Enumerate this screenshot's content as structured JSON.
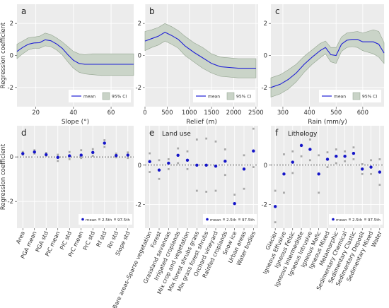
{
  "colors": {
    "line": "#1f1fd6",
    "band": "#c9d3c7",
    "band_stroke": "#8ea08a",
    "point_mean": "#1414c8",
    "point_ci": "#a8a8a8",
    "panel_bg": "#ececec",
    "zero_line": "#222222"
  },
  "chart_data": [
    {
      "type": "line",
      "panel_label": "a",
      "xlabel": "Slope (°)",
      "ylabel": "Regression coefficient",
      "xlim": [
        10,
        72
      ],
      "ylim": [
        -3.2,
        3.2
      ],
      "x_ticks": [
        20,
        40,
        60
      ],
      "y_ticks": [
        -2,
        0,
        2
      ],
      "legend_placement": "bottom-right",
      "legend": {
        "mean": "mean",
        "ci": "95% CI"
      },
      "x": [
        10,
        13,
        16,
        19,
        22,
        25,
        28,
        31,
        34,
        37,
        40,
        43,
        46,
        50,
        55,
        60,
        65,
        70,
        72
      ],
      "mean": [
        0.25,
        0.5,
        0.7,
        0.78,
        0.8,
        0.98,
        0.92,
        0.72,
        0.45,
        0.05,
        -0.3,
        -0.5,
        -0.55,
        -0.55,
        -0.55,
        -0.55,
        -0.55,
        -0.55,
        -0.55
      ],
      "lower": [
        -0.2,
        0.1,
        0.35,
        0.45,
        0.45,
        0.6,
        0.55,
        0.35,
        0.05,
        -0.4,
        -0.8,
        -1.05,
        -1.15,
        -1.2,
        -1.25,
        -1.25,
        -1.25,
        -1.25,
        -1.25
      ],
      "upper": [
        0.7,
        0.9,
        1.1,
        1.15,
        1.2,
        1.4,
        1.3,
        1.1,
        0.85,
        0.55,
        0.25,
        0.1,
        0.05,
        0.1,
        0.1,
        0.1,
        0.1,
        0.1,
        0.1
      ]
    },
    {
      "type": "line",
      "panel_label": "b",
      "xlabel": "Relief (m)",
      "ylabel": "",
      "xlim": [
        0,
        2550
      ],
      "ylim": [
        -3.2,
        3.2
      ],
      "x_ticks": [
        0,
        500,
        1000,
        1500,
        2000,
        2500
      ],
      "y_ticks": [
        -2,
        0,
        2
      ],
      "legend_placement": "bottom-right",
      "legend": {
        "mean": "mean",
        "ci": "95% CI"
      },
      "x": [
        0,
        150,
        300,
        450,
        600,
        750,
        900,
        1100,
        1300,
        1500,
        1700,
        1900,
        2100,
        2300,
        2500
      ],
      "mean": [
        0.9,
        1.05,
        1.2,
        1.45,
        1.25,
        1.0,
        0.6,
        0.2,
        -0.15,
        -0.5,
        -0.7,
        -0.75,
        -0.8,
        -0.8,
        -0.8
      ],
      "lower": [
        0.3,
        0.5,
        0.65,
        0.9,
        0.7,
        0.45,
        0.0,
        -0.4,
        -0.8,
        -1.1,
        -1.3,
        -1.35,
        -1.4,
        -1.4,
        -1.4
      ],
      "upper": [
        1.5,
        1.6,
        1.75,
        2.0,
        1.8,
        1.55,
        1.2,
        0.8,
        0.5,
        0.1,
        -0.1,
        -0.15,
        -0.2,
        -0.2,
        -0.2
      ]
    },
    {
      "type": "line",
      "panel_label": "c",
      "xlabel": "Rain (mm/y)",
      "ylabel": "",
      "xlim": [
        255,
        680
      ],
      "ylim": [
        -3.2,
        3.2
      ],
      "x_ticks": [
        300,
        400,
        500,
        600
      ],
      "y_ticks": [
        -2,
        0,
        2
      ],
      "legend_placement": "bottom-right",
      "legend": {
        "mean": "mean",
        "ci": "95% CI"
      },
      "x": [
        255,
        290,
        320,
        350,
        380,
        410,
        440,
        460,
        480,
        500,
        520,
        540,
        560,
        580,
        600,
        620,
        640,
        660,
        680
      ],
      "mean": [
        -2.0,
        -1.8,
        -1.5,
        -1.1,
        -0.55,
        -0.1,
        0.3,
        0.5,
        0.05,
        0.0,
        0.7,
        0.95,
        1.0,
        1.0,
        0.85,
        0.85,
        0.85,
        0.7,
        0.15
      ],
      "lower": [
        -2.6,
        -2.4,
        -2.1,
        -1.65,
        -1.05,
        -0.55,
        -0.15,
        0.1,
        -0.4,
        -0.5,
        0.25,
        0.5,
        0.55,
        0.5,
        0.3,
        0.2,
        0.1,
        -0.1,
        -0.5
      ],
      "upper": [
        -1.4,
        -1.2,
        -0.9,
        -0.55,
        -0.05,
        0.35,
        0.75,
        0.9,
        0.5,
        0.5,
        1.15,
        1.4,
        1.45,
        1.5,
        1.4,
        1.5,
        1.6,
        1.5,
        0.8
      ]
    },
    {
      "type": "scatter",
      "panel_label": "d",
      "title": "",
      "ylabel": "Regression coefficient",
      "ylim": [
        -3.2,
        1.4
      ],
      "y_ticks": [
        -2,
        0
      ],
      "legend_placement": "bottom-right",
      "legend": {
        "mean": "mean",
        "p025": "2.5th",
        "p975": "97.5th"
      },
      "categories": [
        "Area",
        "PGA mean",
        "PGA std",
        "PIC mean",
        "PIC std",
        "PrC mean",
        "PrC std",
        "Rf std",
        "Rn std",
        "Slope std"
      ],
      "mean": [
        0.15,
        0.22,
        0.1,
        -0.02,
        0.05,
        0.08,
        0.2,
        0.62,
        0.06,
        0.08
      ],
      "p025": [
        0.1,
        0.15,
        0.05,
        -0.18,
        -0.1,
        -0.05,
        0.05,
        0.45,
        -0.02,
        -0.05
      ],
      "p975": [
        0.22,
        0.3,
        0.18,
        0.1,
        0.22,
        0.3,
        0.35,
        0.75,
        0.15,
        0.2
      ]
    },
    {
      "type": "scatter",
      "panel_label": "e",
      "title": "Land use",
      "ylabel": "",
      "ylim": [
        -3.2,
        2.0
      ],
      "y_ticks": [
        -2,
        0
      ],
      "legend_placement": "bottom-right",
      "legend": {
        "mean": "mean",
        "p025": "2.5th",
        "p975": "97.5th"
      },
      "categories": [
        "Bare areas–Sparse vegetation",
        "Forest",
        "Grassland savannas",
        "Irrigated croplands",
        "Mix crop and vegetation",
        "Mix forest shrubs grass",
        "Mix grass forest shrubs",
        "Orchard vineyard",
        "Rainfed croplands",
        "Snow ice",
        "Urban areas",
        "Water bodies"
      ],
      "mean": [
        0.18,
        -0.25,
        0.1,
        0.5,
        0.25,
        0.0,
        0.0,
        -0.05,
        0.2,
        -1.95,
        -0.2,
        0.72
      ],
      "p025": [
        -0.35,
        -0.7,
        -0.2,
        0.1,
        -0.2,
        -1.3,
        -1.35,
        -1.3,
        -0.5,
        -2.6,
        -1.2,
        -0.1
      ],
      "p975": [
        0.6,
        0.25,
        0.3,
        0.85,
        0.7,
        1.3,
        1.35,
        1.2,
        0.8,
        -1.5,
        0.5,
        1.85
      ]
    },
    {
      "type": "scatter",
      "panel_label": "f",
      "title": "Lithology",
      "ylabel": "",
      "ylim": [
        -3.2,
        2.0
      ],
      "y_ticks": [
        -2,
        0
      ],
      "legend_placement": "bottom-right",
      "legend": {
        "mean": "mean",
        "2.5th": "2.5th",
        "97.5th": "97.5th"
      },
      "categories": [
        "Glacier",
        "Igneous Effusive",
        "Igneous Felsic",
        "Igneous Intermediate",
        "Igneous Intrusive",
        "Igneous Mafic",
        "Igneous Mixed",
        "Metamorphic",
        "Sedimentary Chemical",
        "Sedimentary Clastic",
        "Sedimentary Deposit",
        "Sedimentary Mixed",
        "Water"
      ],
      "mean": [
        -2.1,
        -0.45,
        0.15,
        1.0,
        0.8,
        -0.45,
        0.3,
        0.45,
        0.45,
        0.6,
        -0.2,
        -0.1,
        -0.35
      ],
      "p025": [
        -2.9,
        -1.4,
        -0.4,
        0.45,
        0.25,
        -1.4,
        -0.1,
        0.1,
        0.2,
        0.3,
        -0.45,
        -0.45,
        -1.0
      ],
      "p975": [
        -1.3,
        0.55,
        0.7,
        1.55,
        1.3,
        0.5,
        0.65,
        0.8,
        0.7,
        0.9,
        0.05,
        0.25,
        0.3
      ]
    }
  ]
}
